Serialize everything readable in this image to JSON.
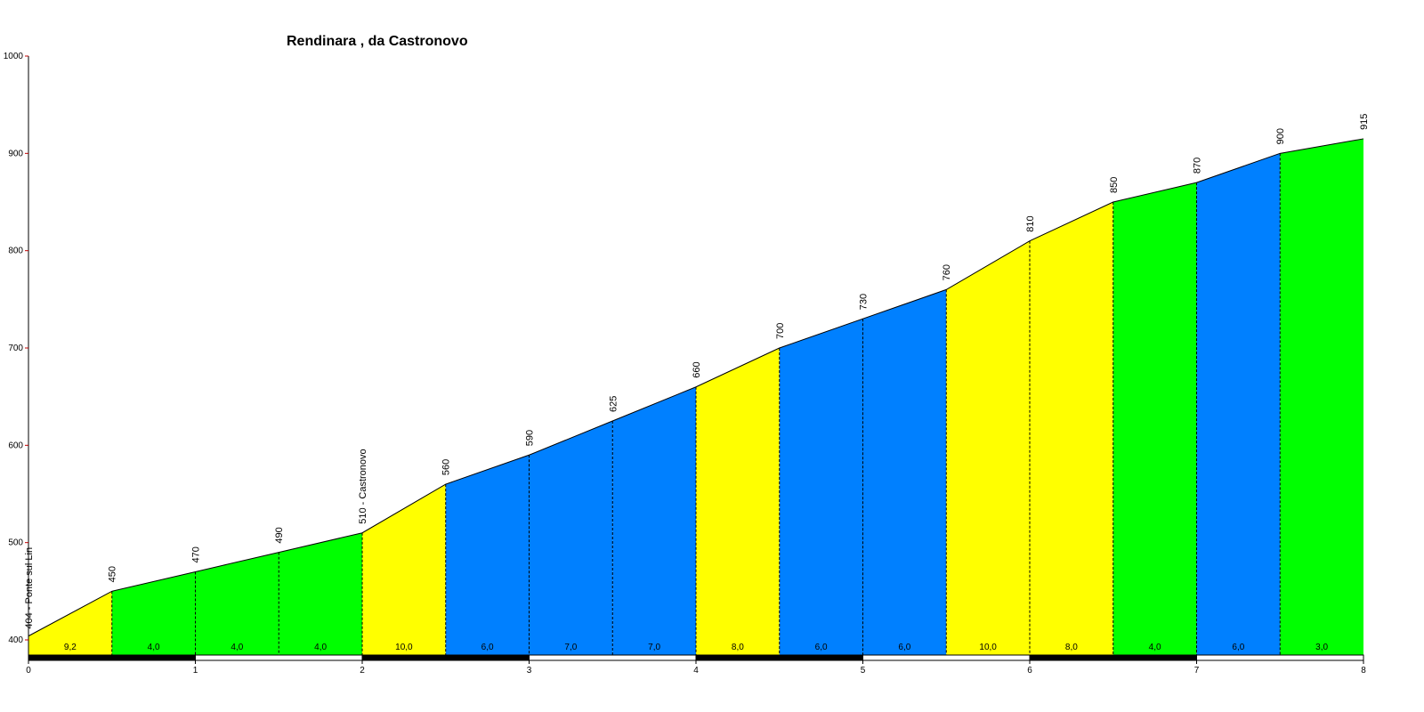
{
  "chart_data": {
    "type": "area",
    "title": "Rendinara , da Castronovo",
    "xlabel": "",
    "ylabel": "",
    "xlim": [
      0,
      8
    ],
    "ylim": [
      400,
      1000
    ],
    "xticks": [
      "0",
      "1",
      "2",
      "3",
      "4",
      "5",
      "6",
      "7",
      "8"
    ],
    "yticks": [
      "400",
      "500",
      "600",
      "700",
      "800",
      "900",
      "1000"
    ],
    "grid": false,
    "points": [
      {
        "x": 0.0,
        "y": 404,
        "label": "404 - Ponte sul Lin"
      },
      {
        "x": 0.5,
        "y": 450,
        "label": "450"
      },
      {
        "x": 1.0,
        "y": 470,
        "label": "470"
      },
      {
        "x": 1.5,
        "y": 490,
        "label": "490"
      },
      {
        "x": 2.0,
        "y": 510,
        "label": "510 - Castronovo"
      },
      {
        "x": 2.5,
        "y": 560,
        "label": "560"
      },
      {
        "x": 3.0,
        "y": 590,
        "label": "590"
      },
      {
        "x": 3.5,
        "y": 625,
        "label": "625"
      },
      {
        "x": 4.0,
        "y": 660,
        "label": "660"
      },
      {
        "x": 4.5,
        "y": 700,
        "label": "700"
      },
      {
        "x": 5.0,
        "y": 730,
        "label": "730"
      },
      {
        "x": 5.5,
        "y": 760,
        "label": "760"
      },
      {
        "x": 6.0,
        "y": 810,
        "label": "810"
      },
      {
        "x": 6.5,
        "y": 850,
        "label": "850"
      },
      {
        "x": 7.0,
        "y": 870,
        "label": "870"
      },
      {
        "x": 7.5,
        "y": 900,
        "label": "900"
      },
      {
        "x": 8.0,
        "y": 915,
        "label": "915"
      }
    ],
    "segments": [
      {
        "gradient": "9,2",
        "color": "#ffff00"
      },
      {
        "gradient": "4,0",
        "color": "#00ff00"
      },
      {
        "gradient": "4,0",
        "color": "#00ff00"
      },
      {
        "gradient": "4,0",
        "color": "#00ff00"
      },
      {
        "gradient": "10,0",
        "color": "#ffff00"
      },
      {
        "gradient": "6,0",
        "color": "#0080ff"
      },
      {
        "gradient": "7,0",
        "color": "#0080ff"
      },
      {
        "gradient": "7,0",
        "color": "#0080ff"
      },
      {
        "gradient": "8,0",
        "color": "#ffff00"
      },
      {
        "gradient": "6,0",
        "color": "#0080ff"
      },
      {
        "gradient": "6,0",
        "color": "#0080ff"
      },
      {
        "gradient": "10,0",
        "color": "#ffff00"
      },
      {
        "gradient": "8,0",
        "color": "#ffff00"
      },
      {
        "gradient": "4,0",
        "color": "#00ff00"
      },
      {
        "gradient": "6,0",
        "color": "#0080ff"
      },
      {
        "gradient": "3,0",
        "color": "#00ff00"
      }
    ]
  }
}
